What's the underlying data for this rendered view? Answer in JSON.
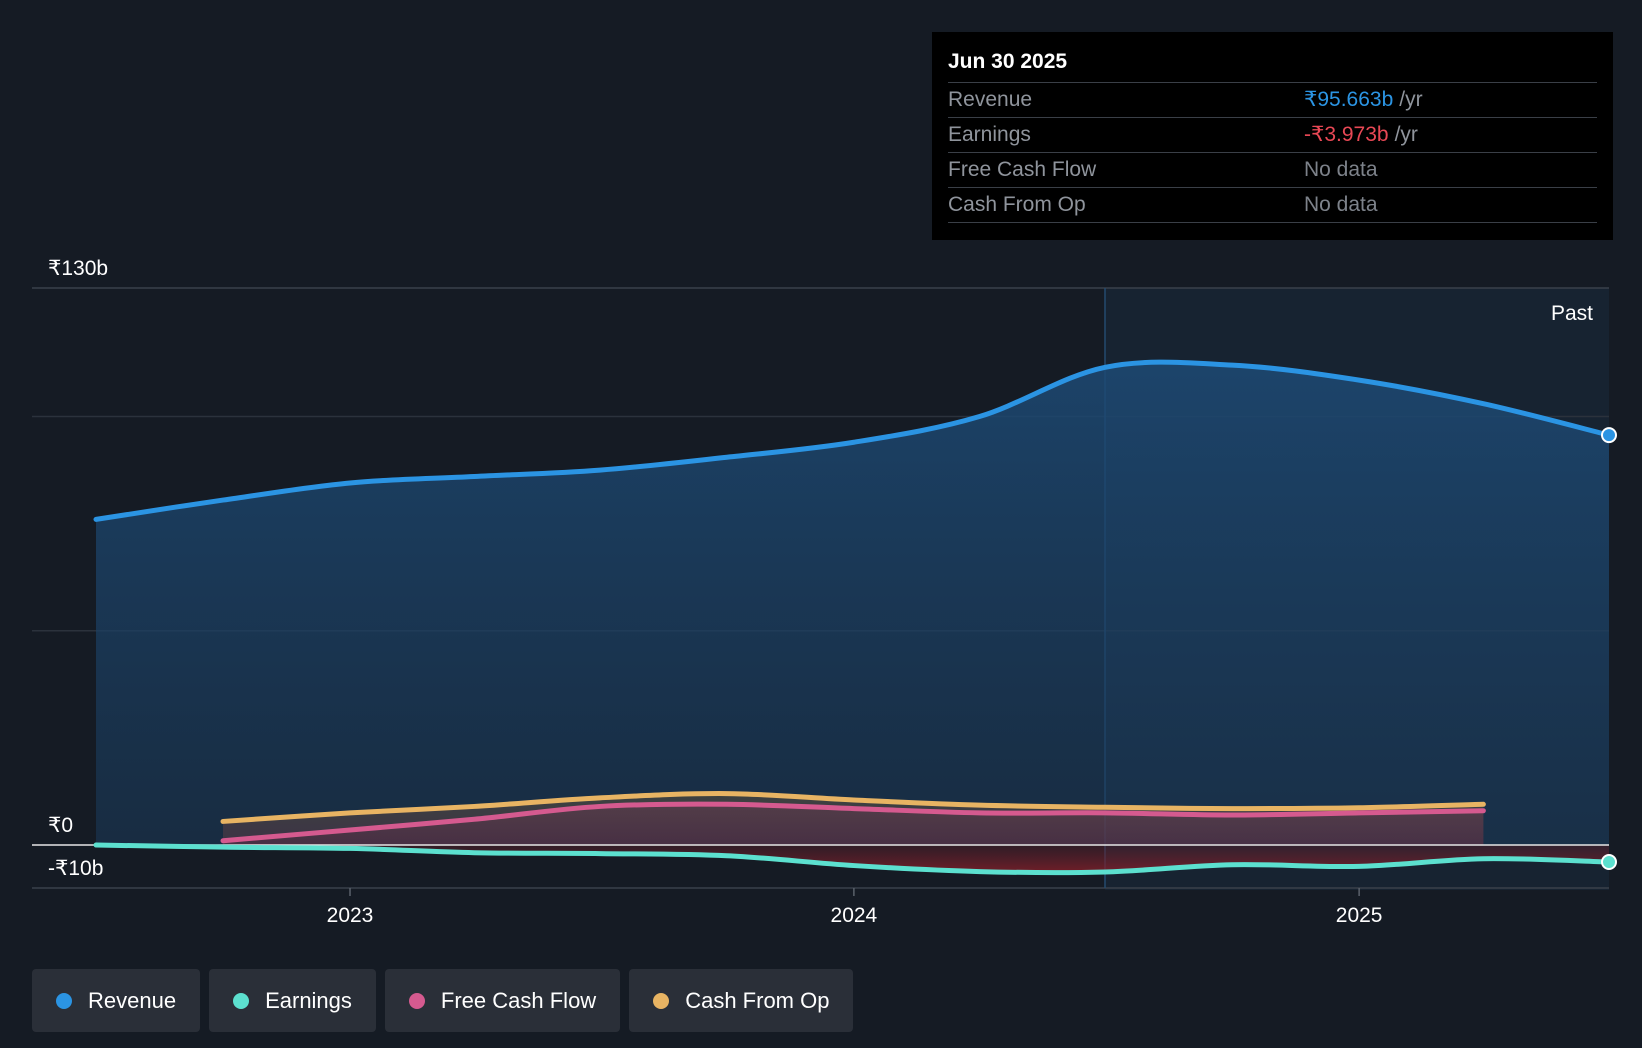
{
  "chart_data": {
    "type": "line",
    "x_ticks": [
      "2023",
      "2024",
      "2025"
    ],
    "y_ticks": [
      "₹130b",
      "₹0",
      "-₹10b"
    ],
    "ylim": [
      -10,
      130
    ],
    "past_label": "Past",
    "series": [
      {
        "name": "Revenue",
        "color": "#2b94e3",
        "area": true,
        "points": [
          [
            "2022-06-30",
            76
          ],
          [
            "2022-09-30",
            80.5
          ],
          [
            "2022-12-31",
            84.5
          ],
          [
            "2023-03-31",
            86
          ],
          [
            "2023-06-30",
            87.5
          ],
          [
            "2023-09-30",
            90.5
          ],
          [
            "2023-12-31",
            94
          ],
          [
            "2024-03-31",
            100
          ],
          [
            "2024-06-30",
            111.5
          ],
          [
            "2024-09-30",
            112
          ],
          [
            "2024-12-31",
            108.5
          ],
          [
            "2025-03-31",
            103
          ],
          [
            "2025-06-30",
            95.663
          ]
        ]
      },
      {
        "name": "Earnings",
        "color": "#5ce0cf",
        "area": true,
        "points": [
          [
            "2022-06-30",
            0
          ],
          [
            "2022-09-30",
            -0.5
          ],
          [
            "2022-12-31",
            -0.8
          ],
          [
            "2023-03-31",
            -1.8
          ],
          [
            "2023-06-30",
            -2.0
          ],
          [
            "2023-09-30",
            -2.5
          ],
          [
            "2023-12-31",
            -4.8
          ],
          [
            "2024-03-31",
            -6.2
          ],
          [
            "2024-06-30",
            -6.3
          ],
          [
            "2024-09-30",
            -4.6
          ],
          [
            "2024-12-31",
            -5.0
          ],
          [
            "2025-03-31",
            -3.2
          ],
          [
            "2025-06-30",
            -3.973
          ]
        ]
      },
      {
        "name": "Free Cash Flow",
        "color": "#d55a8f",
        "area": true,
        "points": [
          [
            "2022-09-30",
            1
          ],
          [
            "2022-12-31",
            3.5
          ],
          [
            "2023-03-31",
            6
          ],
          [
            "2023-06-30",
            9
          ],
          [
            "2023-09-30",
            9.5
          ],
          [
            "2023-12-31",
            8.5
          ],
          [
            "2024-03-31",
            7.5
          ],
          [
            "2024-06-30",
            7.5
          ],
          [
            "2024-09-30",
            7
          ],
          [
            "2024-12-31",
            7.5
          ],
          [
            "2025-03-31",
            8
          ]
        ]
      },
      {
        "name": "Cash From Op",
        "color": "#e8b463",
        "area": true,
        "points": [
          [
            "2022-09-30",
            5.5
          ],
          [
            "2022-12-31",
            7.5
          ],
          [
            "2023-03-31",
            9
          ],
          [
            "2023-06-30",
            11
          ],
          [
            "2023-09-30",
            12
          ],
          [
            "2023-12-31",
            10.5
          ],
          [
            "2024-03-31",
            9.3
          ],
          [
            "2024-06-30",
            8.8
          ],
          [
            "2024-09-30",
            8.5
          ],
          [
            "2024-12-31",
            8.7
          ],
          [
            "2025-03-31",
            9.5
          ]
        ]
      }
    ]
  },
  "tooltip": {
    "date": "Jun 30 2025",
    "rows": [
      {
        "label": "Revenue",
        "value": "₹95.663b",
        "unit": "/yr",
        "color": "#2b94e3"
      },
      {
        "label": "Earnings",
        "value": "-₹3.973b",
        "unit": "/yr",
        "color": "#e84855"
      },
      {
        "label": "Free Cash Flow",
        "value": "No data",
        "unit": "",
        "color": "#7d828a"
      },
      {
        "label": "Cash From Op",
        "value": "No data",
        "unit": "",
        "color": "#7d828a"
      }
    ]
  },
  "legend": [
    {
      "label": "Revenue",
      "color": "#2b94e3"
    },
    {
      "label": "Earnings",
      "color": "#5ce0cf"
    },
    {
      "label": "Free Cash Flow",
      "color": "#d55a8f"
    },
    {
      "label": "Cash From Op",
      "color": "#e8b463"
    }
  ]
}
